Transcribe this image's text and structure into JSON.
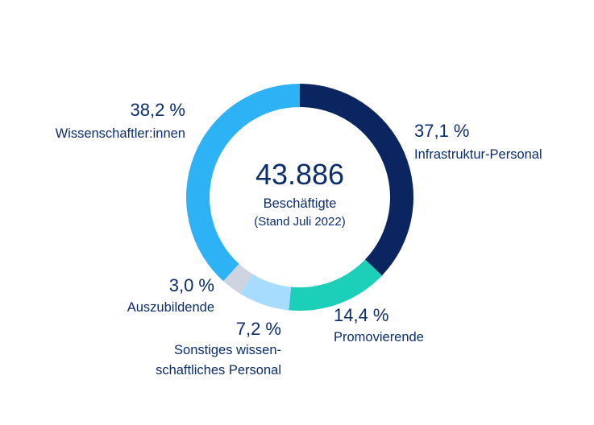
{
  "chart_data": {
    "type": "pie",
    "center": {
      "total": "43.886",
      "line1": "Beschäftigte",
      "line2": "(Stand Juli 2022)"
    },
    "slices": [
      {
        "pct_label": "37,1 %",
        "lines": [
          "Infrastruktur-Personal"
        ],
        "value": 37.1,
        "color": "#0b2560"
      },
      {
        "pct_label": "14,4 %",
        "lines": [
          "Promovierende"
        ],
        "value": 14.4,
        "color": "#1ccfb8"
      },
      {
        "pct_label": "7,2 %",
        "lines": [
          "Sonstiges wissen-",
          "schaftliches Personal"
        ],
        "value": 7.2,
        "color": "#a8dcff"
      },
      {
        "pct_label": "3,0 %",
        "lines": [
          "Auszubildende"
        ],
        "value": 3.0,
        "color": "#cdd4df"
      },
      {
        "pct_label": "38,2 %",
        "lines": [
          "Wissenschaftler:innen"
        ],
        "value": 38.2,
        "color": "#2db2f5"
      }
    ]
  }
}
